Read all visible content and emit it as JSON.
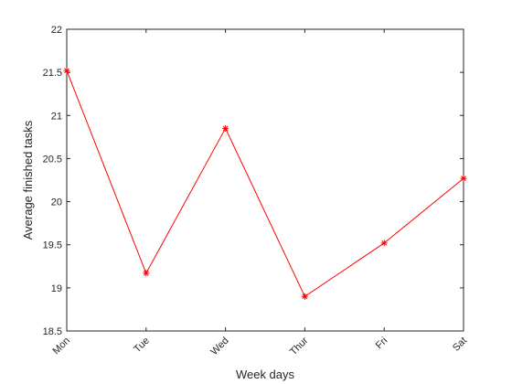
{
  "chart_data": {
    "type": "line",
    "title": "",
    "xlabel": "Week days",
    "ylabel": "Average finished tasks",
    "categories": [
      "Mon",
      "Tue",
      "Wed",
      "Thur",
      "Fri",
      "Sat"
    ],
    "ylim": [
      18.5,
      22
    ],
    "yticks": [
      "18.5",
      "19",
      "19.5",
      "20",
      "20.5",
      "21",
      "21.5",
      "22"
    ],
    "grid": false,
    "series": [
      {
        "values": [
          21.52,
          19.17,
          20.85,
          18.9,
          19.52,
          20.27
        ],
        "color": "#ff0000",
        "marker": "asterisk"
      }
    ]
  }
}
